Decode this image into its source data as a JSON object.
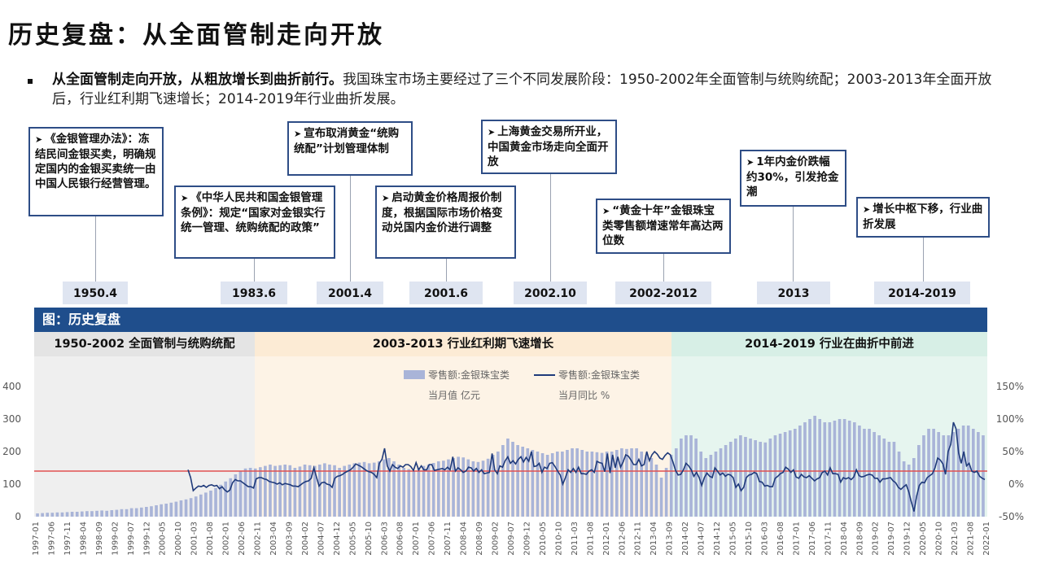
{
  "slide": {
    "title": "历史复盘：从全面管制走向开放",
    "intro_bold": "从全面管制走向开放，从粗放增长到曲折前行。",
    "intro_text": "我国珠宝市场主要经过了三个不同发展阶段：1950-2002年全面管制与统购统配；2003-2013年全面开放后，行业红利期飞速增长；2014-2019年行业曲折发展。"
  },
  "timeline": {
    "callouts": [
      {
        "text": "《金银管理办法》：冻结民间金银买卖，明确规定国内的金银买卖统一由中国人民银行经营管理。"
      },
      {
        "text": "《中华人民共和国金银管理条例》：规定“国家对金银实行统一管理、统购统配的政策”"
      },
      {
        "text": "宣布取消黄金“统购统配”计划管理体制"
      },
      {
        "text": "启动黄金价格周报价制度，根据国际市场价格变动兑国内金价进行调整"
      },
      {
        "text": "上海黄金交易所开业，中国黄金市场走向全面开放"
      },
      {
        "text": "“黄金十年”金银珠宝类零售额增速常年高达两位数"
      },
      {
        "text": "1年内金价跌幅约30%，引发抢金潮"
      },
      {
        "text": "增长中枢下移，行业曲折发展"
      }
    ],
    "dates": [
      "1950.4",
      "1983.6",
      "2001.4",
      "2001.6",
      "2002.10",
      "2002-2012",
      "2013",
      "2014-2019"
    ]
  },
  "chart_header": {
    "title": "图：历史复盘",
    "phases": [
      "1950-2002 全面管制与统购统配",
      "2003-2013 行业红利期飞速增长",
      "2014-2019 行业在曲折中前进"
    ]
  },
  "colors": {
    "bar": "#a9b4d8",
    "line": "#1f3a7a",
    "ref_line": "#e05050",
    "header": "#1f4e8c",
    "phase1_bg": "#ececec",
    "phase2_bg": "#fdf1e2",
    "phase3_bg": "#e3f4ee"
  },
  "chart_data": {
    "type": "bar+line",
    "x_labels": [
      "1997-01",
      "1997-06",
      "1997-11",
      "1998-04",
      "1998-09",
      "1999-02",
      "1999-07",
      "1999-12",
      "2000-05",
      "2000-10",
      "2001-03",
      "2001-08",
      "2002-01",
      "2002-06",
      "2002-11",
      "2003-04",
      "2003-09",
      "2004-02",
      "2004-07",
      "2004-12",
      "2005-05",
      "2005-10",
      "2006-03",
      "2006-08",
      "2007-01",
      "2007-06",
      "2007-11",
      "2008-04",
      "2008-09",
      "2009-02",
      "2009-07",
      "2009-12",
      "2010-05",
      "2010-10",
      "2011-03",
      "2011-08",
      "2012-01",
      "2012-06",
      "2012-11",
      "2013-04",
      "2013-09",
      "2014-02",
      "2014-07",
      "2014-12",
      "2015-05",
      "2015-10",
      "2016-03",
      "2016-08",
      "2017-01",
      "2017-06",
      "2017-11",
      "2018-04",
      "2018-09",
      "2019-02",
      "2019-07",
      "2019-12",
      "2020-05",
      "2020-10",
      "2021-03",
      "2021-08",
      "2022-01"
    ],
    "left_axis": {
      "ticks": [
        "0",
        "100",
        "200",
        "300",
        "400"
      ],
      "ylim": [
        0,
        400
      ]
    },
    "right_axis": {
      "ticks": [
        "-50%",
        "0%",
        "50%",
        "100%",
        "150%"
      ],
      "ylim": [
        -50,
        150
      ]
    },
    "reference_line_pct": 20,
    "legend": [
      {
        "name": "零售额:金银珠宝类",
        "sub": "当月值 亿元",
        "kind": "bar"
      },
      {
        "name": "零售额:金银珠宝类",
        "sub": "当月同比 %",
        "kind": "line"
      }
    ],
    "series_bar": {
      "name": "零售额:金银珠宝类 当月值",
      "values": [
        10,
        11,
        12,
        12,
        13,
        13,
        14,
        15,
        15,
        16,
        17,
        17,
        18,
        19,
        18,
        20,
        21,
        23,
        23,
        26,
        26,
        28,
        30,
        32,
        35,
        38,
        40,
        43,
        46,
        50,
        53,
        57,
        62,
        68,
        74,
        80,
        88,
        98,
        108,
        118,
        130,
        140,
        148,
        150,
        148,
        152,
        156,
        160,
        156,
        158,
        160,
        158,
        150,
        154,
        160,
        158,
        156,
        160,
        164,
        160,
        158,
        150,
        156,
        160,
        164,
        166,
        168,
        164,
        166,
        170,
        176,
        180,
        170,
        160,
        150,
        146,
        140,
        150,
        156,
        160,
        165,
        170,
        172,
        176,
        180,
        184,
        182,
        176,
        170,
        168,
        172,
        178,
        190,
        200,
        220,
        240,
        230,
        220,
        215,
        210,
        205,
        200,
        195,
        190,
        195,
        200,
        200,
        205,
        210,
        210,
        205,
        200,
        200,
        198,
        196,
        200,
        200,
        205,
        210,
        208,
        210,
        210,
        200,
        190,
        180,
        160,
        120,
        150,
        190,
        210,
        240,
        250,
        250,
        240,
        200,
        180,
        190,
        200,
        210,
        220,
        230,
        240,
        250,
        245,
        240,
        235,
        230,
        228,
        240,
        250,
        255,
        260,
        265,
        270,
        280,
        290,
        300,
        310,
        300,
        290,
        290,
        295,
        300,
        300,
        295,
        290,
        280,
        270,
        270,
        260,
        250,
        240,
        230,
        230,
        200,
        170,
        160,
        180,
        220,
        250,
        270,
        270,
        260,
        250,
        250,
        260,
        270,
        280,
        280,
        270,
        260,
        250
      ]
    },
    "series_line": {
      "name": "零售额:金银珠宝类 当月同比",
      "values": [
        22,
        10,
        -10,
        -6,
        -3,
        -4,
        -2,
        -5,
        -2,
        -1,
        -3,
        -2,
        -7,
        -4,
        -9,
        -12,
        -9,
        2,
        7,
        5,
        5,
        2,
        -1,
        -4,
        -4,
        -6,
        8,
        10,
        10,
        8,
        7,
        4,
        3,
        2,
        0,
        2,
        -1,
        1,
        0,
        -1,
        -3,
        -3,
        -4,
        -1,
        2,
        4,
        5,
        9,
        25,
        11,
        -3,
        2,
        3,
        0,
        -1,
        -5,
        9,
        12,
        13,
        15,
        18,
        20,
        22,
        26,
        31,
        29,
        27,
        24,
        21,
        19,
        18,
        15,
        10,
        32,
        38,
        55,
        28,
        20,
        30,
        26,
        24,
        28,
        26,
        30,
        30,
        27,
        21,
        33,
        22,
        28,
        22,
        22,
        30,
        30,
        21,
        22,
        23,
        24,
        22,
        26,
        22,
        42,
        20,
        25,
        22,
        18,
        20,
        26,
        25,
        20,
        24,
        18,
        22,
        16,
        17,
        18,
        47,
        22,
        16,
        28,
        26,
        36,
        42,
        32,
        36,
        31,
        38,
        42,
        34,
        41,
        35,
        50,
        27,
        28,
        32,
        18,
        26,
        24,
        32,
        33,
        27,
        20,
        14,
        0,
        10,
        22,
        18,
        24,
        18,
        26,
        16,
        16,
        15,
        20,
        22,
        18,
        35,
        33,
        32,
        19,
        47,
        17,
        45,
        25,
        42,
        26,
        34,
        45,
        43,
        37,
        30,
        30,
        38,
        28,
        30,
        50,
        36,
        45,
        50,
        46,
        40,
        38,
        44,
        48,
        45,
        34,
        21,
        14,
        15,
        22,
        32,
        28,
        22,
        12,
        18,
        10,
        -2,
        10,
        17,
        12,
        10,
        25,
        20,
        14,
        17,
        12,
        15,
        14,
        10,
        -5,
        0,
        -10,
        -5,
        10,
        14,
        15,
        18,
        16,
        4,
        3,
        -3,
        -2,
        -4,
        -4,
        9,
        12,
        16,
        18,
        26,
        23,
        18,
        22,
        11,
        9,
        15,
        11,
        10,
        13,
        9,
        5,
        8,
        10,
        18,
        20,
        14,
        25,
        16,
        16,
        15,
        3,
        10,
        8,
        10,
        7,
        11,
        22,
        13,
        11,
        12,
        14,
        15,
        14,
        9,
        9,
        3,
        8,
        8,
        9,
        10,
        5,
        2,
        -5,
        -8,
        -4,
        -1,
        -12,
        -28,
        -42,
        -18,
        -2,
        3,
        2,
        10,
        13,
        16,
        25,
        40,
        37,
        31,
        15,
        50,
        61,
        95,
        85,
        48,
        32,
        50,
        28,
        32,
        20,
        18,
        20,
        12,
        9,
        7
      ]
    }
  }
}
